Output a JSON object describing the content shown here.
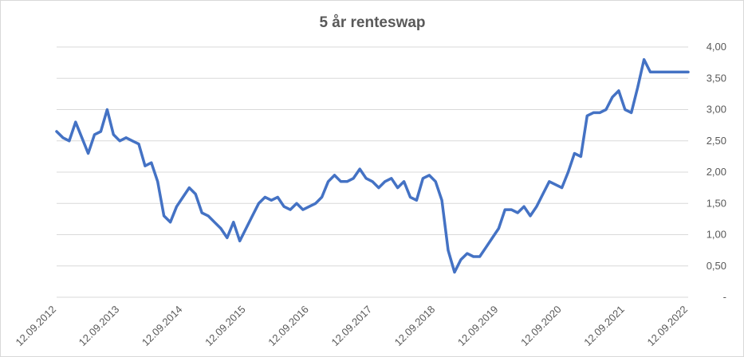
{
  "chart_data": {
    "type": "line",
    "title": "5 år renteswap",
    "xlabel": "",
    "ylabel": "",
    "ylim": [
      0,
      4
    ],
    "grid": true,
    "y_axis_side": "right",
    "line_color": "#4472c4",
    "y_ticks": [
      "-",
      "0,50",
      "1,00",
      "1,50",
      "2,00",
      "2,50",
      "3,00",
      "3,50",
      "4,00"
    ],
    "x_ticks": [
      "12.09.2012",
      "12.09.2013",
      "12.09.2014",
      "12.09.2015",
      "12.09.2016",
      "12.09.2017",
      "12.09.2018",
      "12.09.2019",
      "12.09.2020",
      "12.09.2021",
      "12.09.2022"
    ],
    "series": [
      {
        "x": [
          2012.7,
          2012.8,
          2012.9,
          2013.0,
          2013.1,
          2013.2,
          2013.3,
          2013.4,
          2013.5,
          2013.6,
          2013.7,
          2013.8,
          2013.9,
          2014.0,
          2014.1,
          2014.2,
          2014.3,
          2014.4,
          2014.5,
          2014.6,
          2014.7,
          2014.8,
          2014.9,
          2015.0,
          2015.1,
          2015.2,
          2015.3,
          2015.4,
          2015.5,
          2015.6,
          2015.7,
          2015.8,
          2015.9,
          2016.0,
          2016.1,
          2016.2,
          2016.3,
          2016.4,
          2016.5,
          2016.6,
          2016.7,
          2016.8,
          2016.9,
          2017.0,
          2017.1,
          2017.2,
          2017.3,
          2017.4,
          2017.5,
          2017.6,
          2017.7,
          2017.8,
          2017.9,
          2018.0,
          2018.1,
          2018.2,
          2018.3,
          2018.4,
          2018.5,
          2018.6,
          2018.7,
          2018.8,
          2018.9,
          2019.0,
          2019.1,
          2019.2,
          2019.3,
          2019.4,
          2019.5,
          2019.6,
          2019.7,
          2019.8,
          2019.9,
          2020.0,
          2020.1,
          2020.2,
          2020.3,
          2020.4,
          2020.5,
          2020.6,
          2020.7,
          2020.8,
          2020.9,
          2021.0,
          2021.1,
          2021.2,
          2021.3,
          2021.4,
          2021.5,
          2021.6,
          2021.7,
          2021.8,
          2021.9,
          2022.0,
          2022.1,
          2022.2,
          2022.3,
          2022.4,
          2022.5,
          2022.6,
          2022.7
        ],
        "values": [
          2.65,
          2.55,
          2.5,
          2.8,
          2.55,
          2.3,
          2.6,
          2.65,
          3.0,
          2.6,
          2.5,
          2.55,
          2.5,
          2.45,
          2.1,
          2.15,
          1.85,
          1.3,
          1.2,
          1.45,
          1.6,
          1.75,
          1.65,
          1.35,
          1.3,
          1.2,
          1.1,
          0.95,
          1.2,
          0.9,
          1.1,
          1.3,
          1.5,
          1.6,
          1.55,
          1.6,
          1.45,
          1.4,
          1.5,
          1.4,
          1.45,
          1.5,
          1.6,
          1.85,
          1.95,
          1.85,
          1.85,
          1.9,
          2.05,
          1.9,
          1.85,
          1.75,
          1.85,
          1.9,
          1.75,
          1.85,
          1.6,
          1.55,
          1.9,
          1.95,
          1.85,
          1.55,
          0.75,
          0.4,
          0.6,
          0.7,
          0.65,
          0.65,
          0.8,
          0.95,
          1.1,
          1.4,
          1.4,
          1.35,
          1.45,
          1.3,
          1.45,
          1.65,
          1.85,
          1.8,
          1.75,
          2.0,
          2.3,
          2.25,
          2.9,
          2.95,
          2.95,
          3.0,
          3.2,
          3.3,
          3.0,
          2.95,
          3.35,
          3.8,
          3.6,
          3.6,
          3.6,
          3.6,
          3.6,
          3.6,
          3.6
        ]
      }
    ]
  }
}
